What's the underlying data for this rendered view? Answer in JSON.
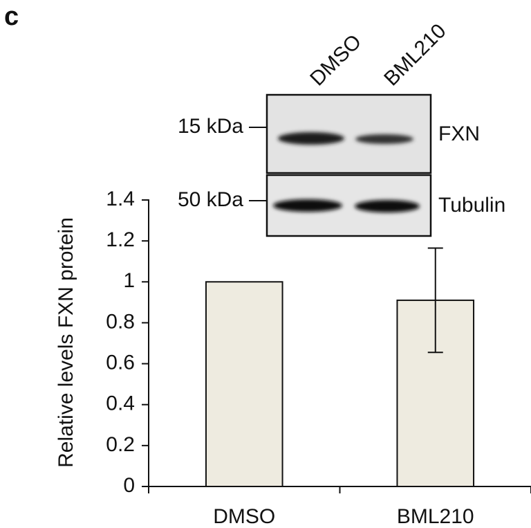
{
  "chart_data": {
    "type": "bar",
    "panel_label": "c",
    "ylabel": "Relative levels FXN protein",
    "categories": [
      "DMSO",
      "BML210"
    ],
    "values": [
      1,
      0.91
    ],
    "errors": [
      null,
      0.255
    ],
    "color": "#eeebe0",
    "ylim": [
      0,
      1.4
    ],
    "yticks": [
      0,
      0.2,
      0.4,
      0.6,
      0.8,
      1,
      1.2,
      1.4
    ],
    "blot": {
      "lanes": [
        "DMSO",
        "BML210"
      ],
      "markers": [
        "15 kDa",
        "50 kDa"
      ],
      "proteins": [
        "FXN",
        "Tubulin"
      ]
    }
  }
}
